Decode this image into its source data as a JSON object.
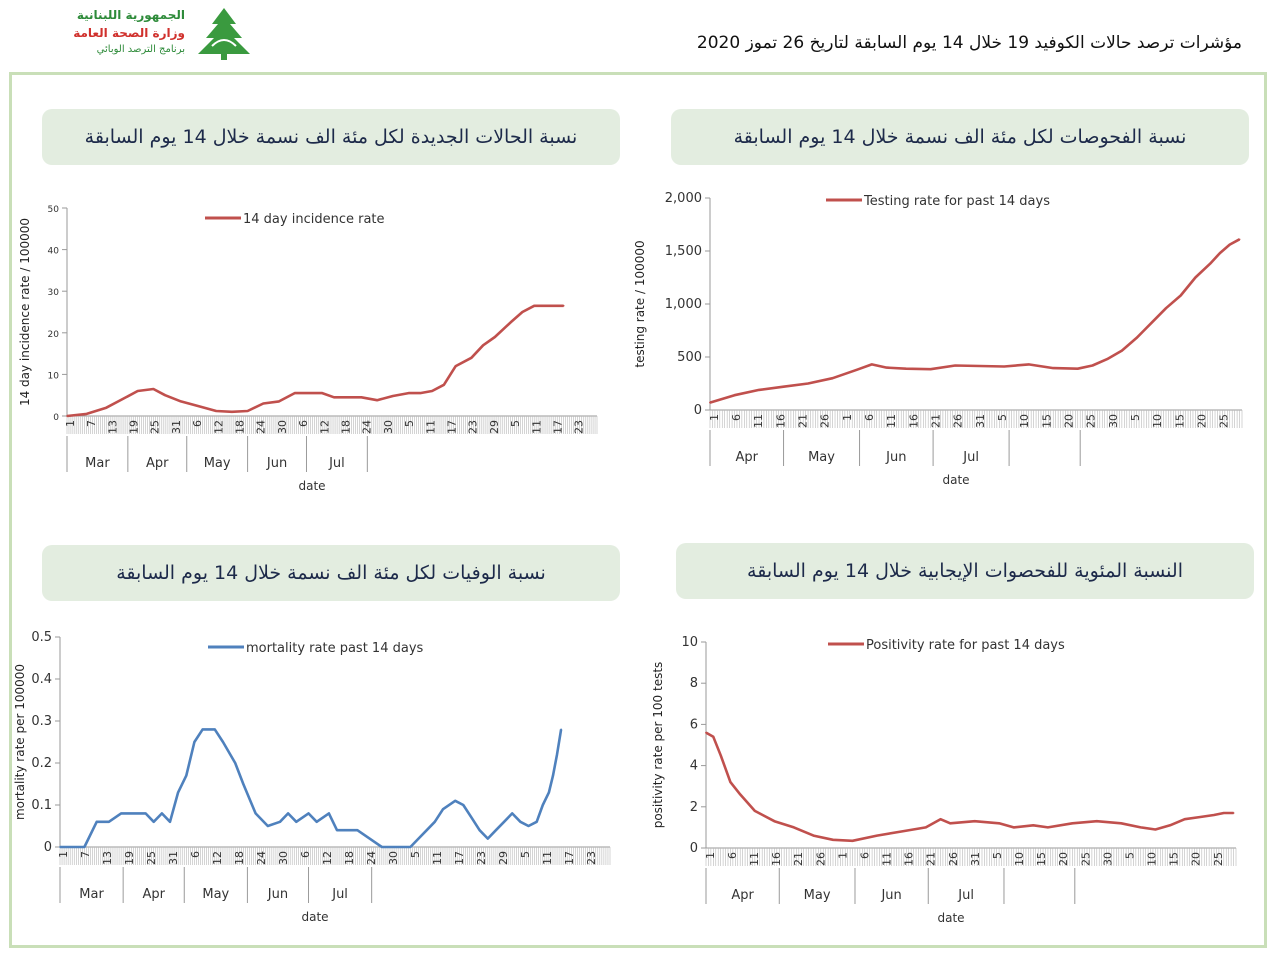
{
  "header": {
    "logo_line1": "الجمهورية اللبنانية",
    "logo_line2": "وزارة الصحة العامة",
    "logo_line3": "برنامج الترصد الوبائي",
    "title": "مؤشرات ترصد حالات الكوفيد 19 خلال 14 يوم السابقة لتاريخ 26 تموز 2020"
  },
  "panels": {
    "incidence_title": "نسبة الحالات الجديدة لكل مئة الف نسمة خلال 14 يوم السابقة",
    "testing_title": "نسبة الفحوصات لكل مئة الف نسمة خلال 14 يوم السابقة",
    "mortality_title": "نسبة الوفيات لكل مئة الف نسمة خلال 14 يوم السابقة",
    "positivity_title": "النسبة المئوية للفحصوات الإيجابية خلال 14 يوم السابقة"
  },
  "colors": {
    "red_series": "#c0504d",
    "blue_series": "#4f81bd",
    "banner_bg": "#e3ede0",
    "frame": "#c9dfb8"
  },
  "chart_data": [
    {
      "id": "incidence",
      "type": "line",
      "legend": "14 day incidence rate",
      "ylabel": "14 day incidence rate / 100000",
      "xlabel": "date",
      "ylim": [
        0,
        50
      ],
      "yticks": [
        "0",
        "10",
        "20",
        "30",
        "40",
        "50"
      ],
      "xticks": [
        "1",
        "7",
        "13",
        "19",
        "25",
        "31",
        "6",
        "12",
        "18",
        "24",
        "30",
        "6",
        "12",
        "18",
        "24",
        "30",
        "5",
        "11",
        "17",
        "23",
        "29",
        "5",
        "11",
        "17",
        "23"
      ],
      "months": [
        "Mar",
        "Apr",
        "May",
        "Jun",
        "Jul"
      ],
      "x_days": [
        0,
        10,
        20,
        28,
        36,
        44,
        50,
        58,
        66,
        76,
        84,
        92,
        100,
        108,
        116,
        124,
        130,
        136,
        142,
        150,
        158,
        166,
        174,
        180,
        186,
        192,
        198,
        206,
        212,
        218,
        226,
        232,
        238,
        242,
        246,
        250,
        253
      ],
      "values": [
        0,
        0.5,
        2,
        4,
        6,
        6.5,
        5,
        3.5,
        2.5,
        1.2,
        1,
        1.2,
        3,
        3.5,
        5.5,
        5.5,
        5.5,
        4.5,
        4.5,
        4.5,
        3.8,
        4.8,
        5.5,
        5.5,
        6,
        7.5,
        12,
        14,
        17,
        19,
        22.5,
        25,
        26.5,
        26.5,
        26.5,
        26.5,
        26.5
      ]
    },
    {
      "id": "testing",
      "type": "line",
      "legend": "Testing rate for past 14 days",
      "ylabel": "testing rate / 100000",
      "xlabel": "date",
      "ylim": [
        0,
        2000
      ],
      "yticks": [
        "0",
        "500",
        "1,000",
        "1,500",
        "2,000"
      ],
      "xticks": [
        "1",
        "6",
        "11",
        "16",
        "21",
        "26",
        "1",
        "6",
        "11",
        "16",
        "21",
        "26",
        "31",
        "5",
        "10",
        "15",
        "20",
        "25",
        "30",
        "5",
        "10",
        "15",
        "20",
        "25"
      ],
      "months": [
        "Apr",
        "May",
        "Jun",
        "Jul"
      ],
      "x_days": [
        0,
        10,
        20,
        30,
        40,
        50,
        60,
        66,
        72,
        80,
        90,
        100,
        110,
        120,
        130,
        140,
        150,
        156,
        162,
        168,
        174,
        180,
        186,
        192,
        198,
        204,
        208,
        212,
        216
      ],
      "values": [
        70,
        140,
        190,
        220,
        250,
        300,
        380,
        430,
        400,
        390,
        385,
        420,
        415,
        410,
        430,
        395,
        390,
        420,
        480,
        560,
        680,
        820,
        960,
        1080,
        1250,
        1380,
        1480,
        1560,
        1610
      ]
    },
    {
      "id": "mortality",
      "type": "line",
      "legend": "mortality rate past 14 days",
      "ylabel": "mortality rate per 100000",
      "xlabel": "date",
      "ylim": [
        0,
        0.5
      ],
      "yticks": [
        "0",
        "0.1",
        "0.2",
        "0.3",
        "0.4",
        "0.5"
      ],
      "xticks": [
        "1",
        "7",
        "13",
        "19",
        "25",
        "31",
        "6",
        "12",
        "18",
        "24",
        "30",
        "6",
        "12",
        "18",
        "24",
        "30",
        "5",
        "11",
        "17",
        "23",
        "29",
        "5",
        "11",
        "17",
        "23"
      ],
      "months": [
        "Mar",
        "Apr",
        "May",
        "Jun",
        "Jul"
      ],
      "x_days": [
        0,
        12,
        18,
        24,
        30,
        34,
        38,
        42,
        46,
        50,
        54,
        58,
        62,
        66,
        70,
        76,
        80,
        86,
        90,
        96,
        102,
        108,
        112,
        116,
        122,
        126,
        132,
        136,
        140,
        146,
        152,
        158,
        164,
        168,
        172,
        176,
        180,
        184,
        188,
        194,
        198,
        202,
        206,
        210,
        214,
        218,
        222,
        226,
        230,
        234,
        237,
        240,
        242,
        244,
        246
      ],
      "values": [
        0,
        0,
        0.06,
        0.06,
        0.08,
        0.08,
        0.08,
        0.08,
        0.06,
        0.08,
        0.06,
        0.13,
        0.17,
        0.25,
        0.28,
        0.28,
        0.25,
        0.2,
        0.15,
        0.08,
        0.05,
        0.06,
        0.08,
        0.06,
        0.08,
        0.06,
        0.08,
        0.04,
        0.04,
        0.04,
        0.02,
        0,
        0,
        0,
        0,
        0.02,
        0.04,
        0.06,
        0.09,
        0.11,
        0.1,
        0.07,
        0.04,
        0.02,
        0.04,
        0.06,
        0.08,
        0.06,
        0.05,
        0.06,
        0.1,
        0.13,
        0.17,
        0.22,
        0.28
      ]
    },
    {
      "id": "positivity",
      "type": "line",
      "legend": "Positivity rate for past 14 days",
      "ylabel": "positivity rate per 100 tests",
      "xlabel": "date",
      "ylim": [
        0,
        10
      ],
      "yticks": [
        "0",
        "2",
        "4",
        "6",
        "8",
        "10"
      ],
      "xticks": [
        "1",
        "6",
        "11",
        "16",
        "21",
        "26",
        "1",
        "6",
        "11",
        "16",
        "21",
        "26",
        "31",
        "5",
        "10",
        "15",
        "20",
        "25",
        "30",
        "5",
        "10",
        "15",
        "20",
        "25"
      ],
      "months": [
        "Apr",
        "May",
        "Jun",
        "Jul"
      ],
      "x_days": [
        0,
        3,
        6,
        10,
        14,
        20,
        28,
        36,
        44,
        52,
        60,
        70,
        80,
        90,
        96,
        100,
        110,
        120,
        126,
        134,
        140,
        150,
        160,
        170,
        178,
        184,
        190,
        196,
        202,
        208,
        212,
        216
      ],
      "values": [
        5.6,
        5.4,
        4.5,
        3.2,
        2.6,
        1.8,
        1.3,
        1.0,
        0.6,
        0.4,
        0.35,
        0.6,
        0.8,
        1.0,
        1.4,
        1.2,
        1.3,
        1.2,
        1.0,
        1.1,
        1.0,
        1.2,
        1.3,
        1.2,
        1.0,
        0.9,
        1.1,
        1.4,
        1.5,
        1.6,
        1.7,
        1.7
      ]
    }
  ]
}
